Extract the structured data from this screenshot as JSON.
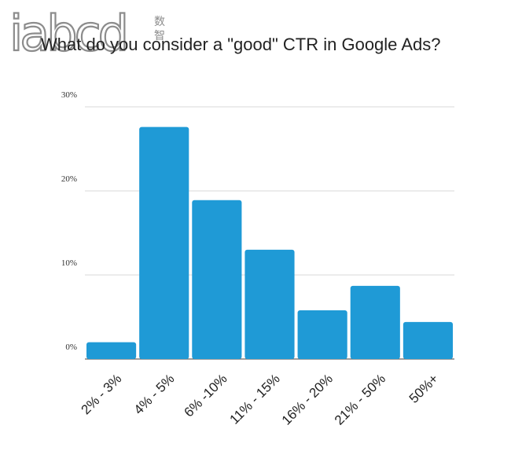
{
  "logo": {
    "text": "iabcd",
    "cn_top": "数",
    "cn_bottom": "智"
  },
  "colors": {
    "bar": "#1f9ad6",
    "grid": "#d9d9d9",
    "axis": "#666666"
  },
  "chart_data": {
    "type": "bar",
    "title": "What do you consider a \"good\" CTR in Google Ads?",
    "xlabel": "",
    "ylabel": "",
    "categories": [
      "2% - 3%",
      "4% - 5%",
      "6% -10%",
      "11% - 15%",
      "16% - 20%",
      "21% - 50%",
      "50%+"
    ],
    "values": [
      2.0,
      27.6,
      18.9,
      13.0,
      5.8,
      8.7,
      4.4
    ],
    "ylim": [
      0,
      30
    ],
    "yticks": [
      0,
      10,
      20,
      30
    ],
    "ytick_labels": [
      "0%",
      "10%",
      "20%",
      "30%"
    ],
    "grid": true,
    "legend": "none"
  }
}
